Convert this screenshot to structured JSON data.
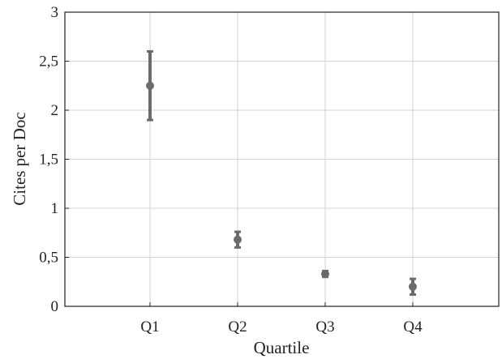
{
  "chart_data": {
    "type": "scatter",
    "xlabel": "Quartile",
    "ylabel": "Cites per Doc",
    "categories": [
      "Q1",
      "Q2",
      "Q3",
      "Q4"
    ],
    "ylim": [
      0,
      3
    ],
    "yticks": [
      0,
      0.5,
      1,
      1.5,
      2,
      2.5,
      3
    ],
    "ytick_labels": [
      "0",
      "0,5",
      "1",
      "1,5",
      "2",
      "2,5",
      "3"
    ],
    "grid": true,
    "series": [
      {
        "values": [
          2.25,
          0.68,
          0.33,
          0.2
        ],
        "error_low": [
          1.9,
          0.6,
          0.3,
          0.12
        ],
        "error_high": [
          2.6,
          0.76,
          0.36,
          0.28
        ]
      }
    ],
    "colors": {
      "marker": "#6b6b6b",
      "grid": "#d3d3d3",
      "axis": "#222222"
    }
  }
}
